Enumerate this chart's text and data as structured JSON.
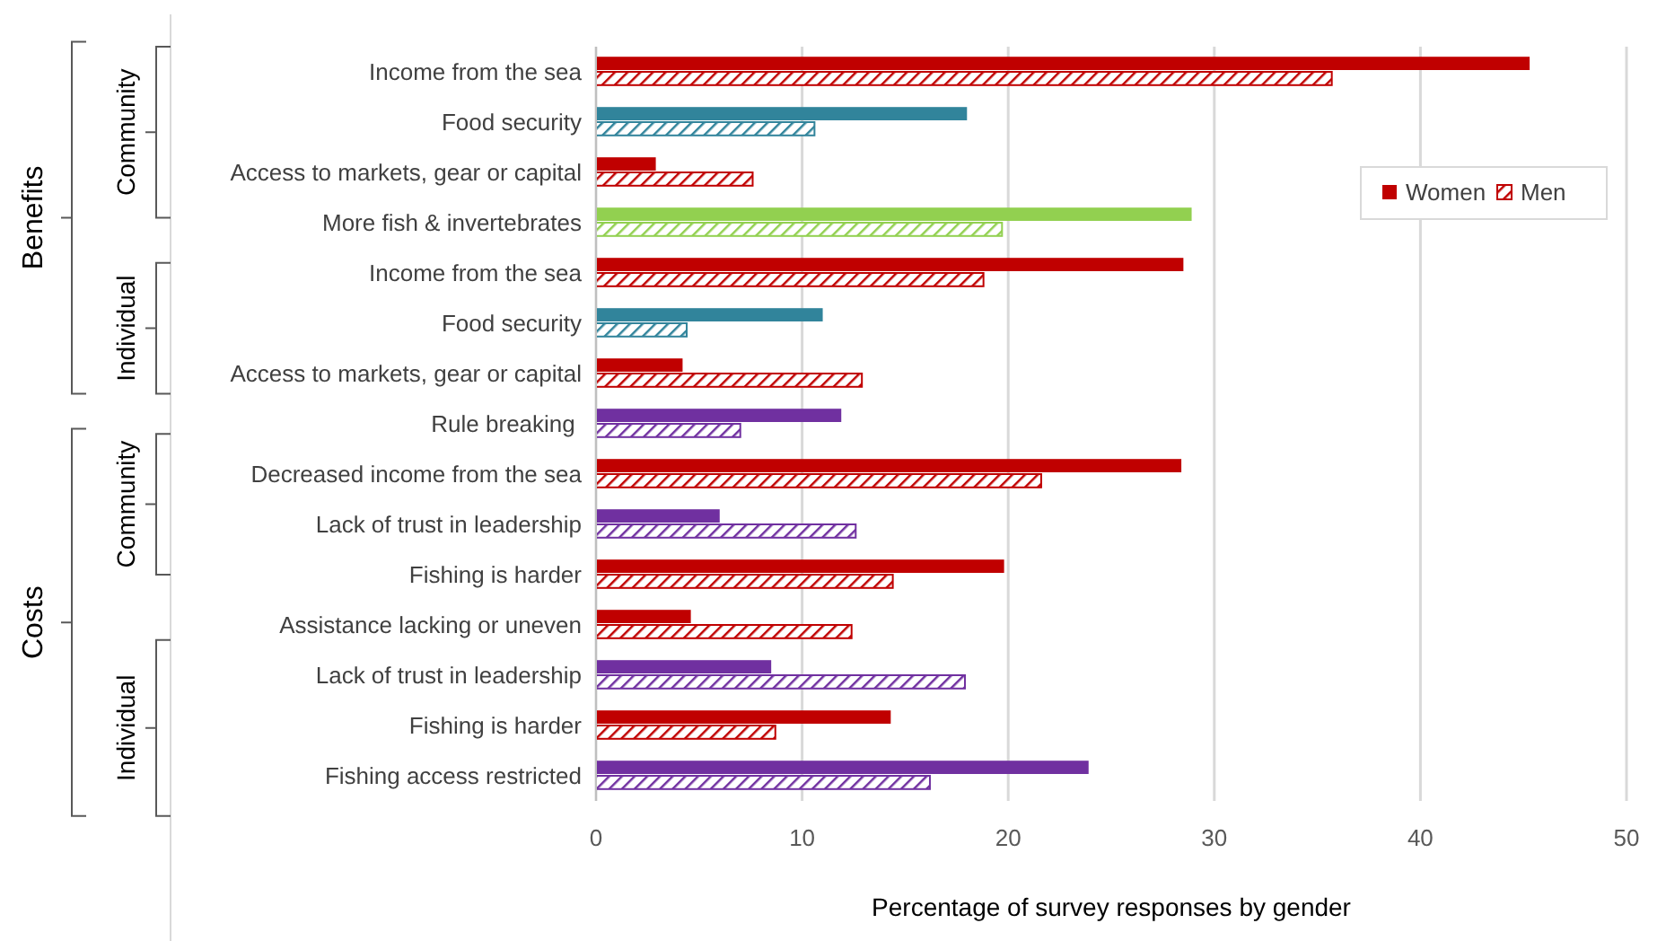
{
  "chart_data": {
    "type": "bar",
    "orientation": "horizontal",
    "xlabel": "Percentage of survey responses by gender",
    "categories": [
      "Income from the sea",
      "Food security",
      "Access to markets, gear or capital",
      "More fish & invertebrates",
      "Income from the sea",
      "Food security",
      "Access to markets, gear or capital",
      "Rule breaking ",
      "Decreased income from the sea",
      "Lack of trust in leadership",
      "Fishing is harder",
      "Assistance lacking or uneven",
      "Lack of trust in leadership",
      "Fishing is harder",
      "Fishing access restricted"
    ],
    "series": [
      {
        "name": "Women",
        "color": "#c00000",
        "colors": [
          "#c00000",
          "#31849b",
          "#c00000",
          "#92d050",
          "#c00000",
          "#31849b",
          "#c00000",
          "#7030a0",
          "#c00000",
          "#7030a0",
          "#c00000",
          "#c00000",
          "#7030a0",
          "#c00000",
          "#7030a0"
        ],
        "values": [
          45.3,
          18.0,
          2.9,
          28.9,
          28.5,
          11.0,
          4.2,
          11.9,
          28.4,
          6.0,
          19.8,
          4.6,
          8.5,
          14.3,
          23.9
        ]
      },
      {
        "name": "Men",
        "color": "#c00000",
        "colors": [
          "#c00000",
          "#31849b",
          "#c00000",
          "#92d050",
          "#c00000",
          "#31849b",
          "#c00000",
          "#7030a0",
          "#c00000",
          "#7030a0",
          "#c00000",
          "#c00000",
          "#7030a0",
          "#c00000",
          "#7030a0"
        ],
        "values": [
          35.7,
          10.6,
          7.6,
          19.7,
          18.8,
          4.4,
          12.9,
          7.0,
          21.6,
          12.6,
          14.4,
          12.4,
          17.9,
          8.7,
          16.2
        ]
      }
    ],
    "xlim": [
      0,
      50
    ],
    "xticks": [
      0,
      10,
      20,
      30,
      40,
      50
    ],
    "grid": "x",
    "legend": "top right",
    "annotations": [
      "Benefits",
      "Community",
      "Individual",
      "Costs",
      "Community",
      "Individual"
    ]
  }
}
